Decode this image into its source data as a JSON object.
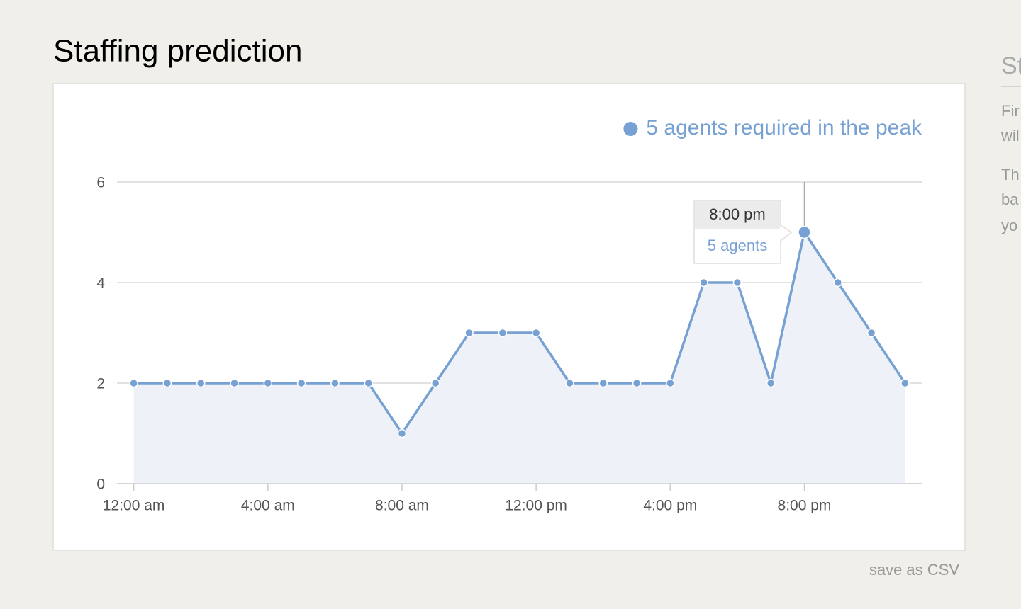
{
  "page": {
    "title": "Staffing prediction",
    "save_link": "save as CSV",
    "sidebar": {
      "heading": "St",
      "lines": [
        "Fir",
        "wil",
        "Th",
        "ba",
        "yo"
      ]
    }
  },
  "chart_data": {
    "type": "line",
    "categories": [
      "12:00 am",
      null,
      null,
      null,
      "4:00 am",
      null,
      null,
      null,
      "8:00 am",
      null,
      null,
      null,
      "12:00 pm",
      null,
      null,
      null,
      "4:00 pm",
      null,
      null,
      null,
      "8:00 pm",
      null,
      null,
      null
    ],
    "series": [
      {
        "name": "5 agents required in the peak",
        "color": "#77a1d3",
        "values": [
          2,
          2,
          2,
          2,
          2,
          2,
          2,
          2,
          1,
          2,
          3,
          3,
          3,
          2,
          2,
          2,
          2,
          4,
          4,
          2,
          5,
          4,
          3,
          2
        ]
      }
    ],
    "ylim": [
      0,
      6
    ],
    "yticks": [
      0,
      2,
      4,
      6
    ],
    "grid": true,
    "legend": "top-right",
    "tooltip": {
      "title": "8:00 pm",
      "text": "5 agents"
    }
  }
}
